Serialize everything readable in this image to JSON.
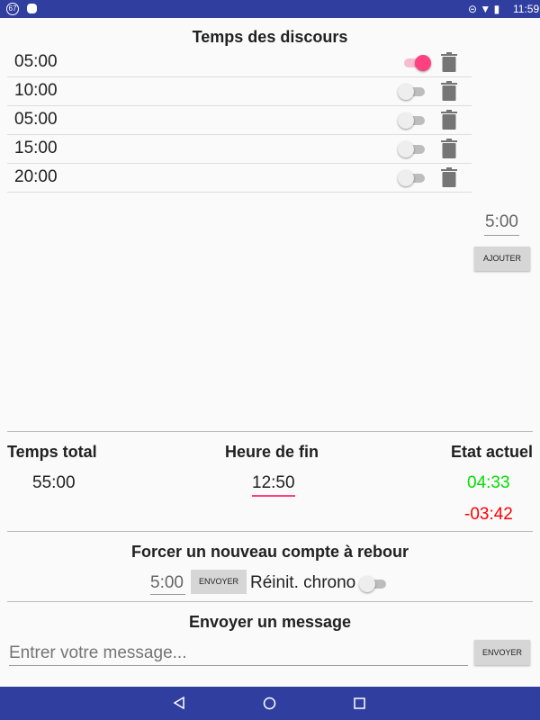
{
  "status": {
    "left_badge": "67",
    "time": "11:59"
  },
  "speeches": {
    "title": "Temps des discours",
    "items": [
      {
        "time": "05:00",
        "enabled": true
      },
      {
        "time": "10:00",
        "enabled": false
      },
      {
        "time": "05:00",
        "enabled": false
      },
      {
        "time": "15:00",
        "enabled": false
      },
      {
        "time": "20:00",
        "enabled": false
      }
    ],
    "new_value": "5:00",
    "add_label": "AJOUTER"
  },
  "summary": {
    "total_label": "Temps total",
    "total_value": "55:00",
    "end_label": "Heure de fin",
    "end_value": "12:50",
    "state_label": "Etat actuel",
    "state_value": "04:33",
    "state_over": "-03:42",
    "state_color": "#00e000",
    "over_color": "#ff0000"
  },
  "force": {
    "title": "Forcer un nouveau compte à rebour",
    "value": "5:00",
    "send_label": "ENVOYER",
    "reset_label": "Réinit. chrono",
    "reset_enabled": false
  },
  "message": {
    "title": "Envoyer un message",
    "placeholder": "Entrer votre message...",
    "send_label": "ENVOYER"
  }
}
